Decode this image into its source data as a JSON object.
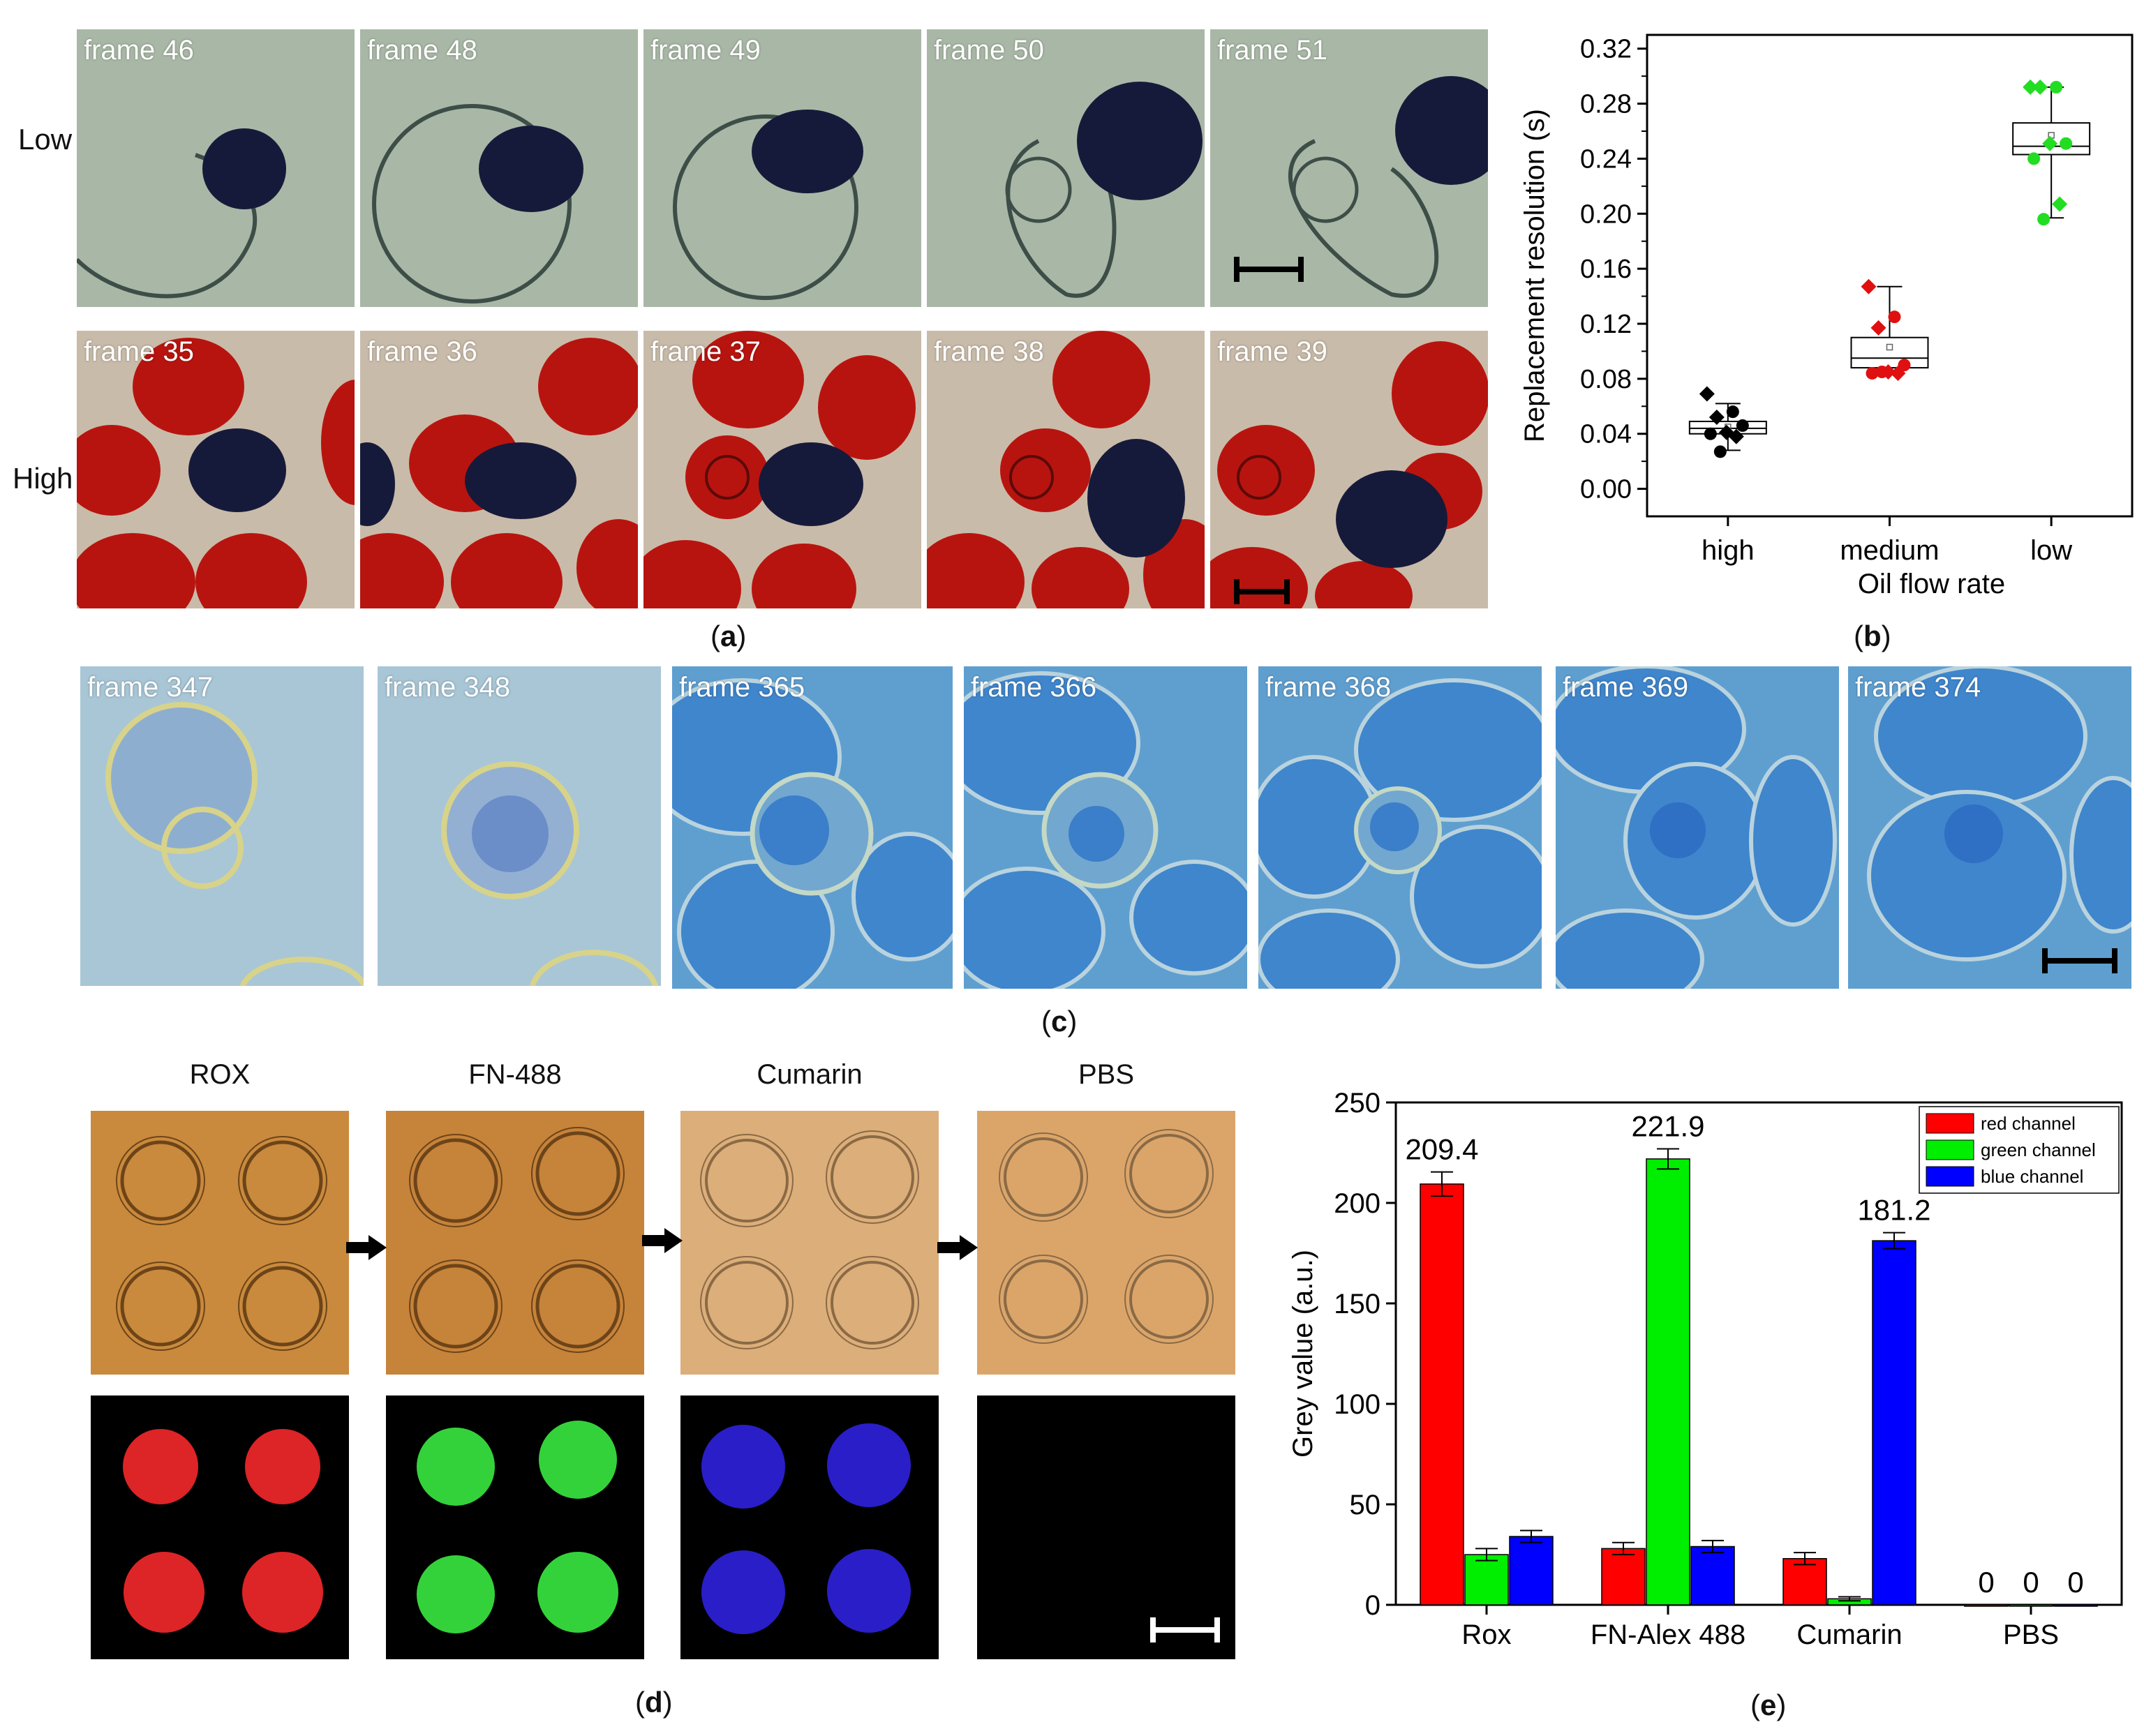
{
  "panel_a": {
    "row_labels": [
      "Low",
      "High"
    ],
    "low_frames": [
      "frame 46",
      "frame 48",
      "frame 49",
      "frame 50",
      "frame 51"
    ],
    "high_frames": [
      "frame 35",
      "frame 36",
      "frame 37",
      "frame 38",
      "frame 39"
    ],
    "caption": "a"
  },
  "panel_c": {
    "frames": [
      "frame 347",
      "frame 348",
      "frame 365",
      "frame 366",
      "frame 368",
      "frame 369",
      "frame 374"
    ],
    "caption": "c"
  },
  "panel_d": {
    "headers": [
      "ROX",
      "FN-488",
      "Cumarin",
      "PBS"
    ],
    "caption": "d",
    "fluor_colors": [
      "#dd2426",
      "#34d23a",
      "#2a1ec8",
      "#000000"
    ]
  },
  "colors": {
    "low_bg": "#a9b8a6",
    "high_bg": "#c9bba9",
    "blue_bg": "#5f9fd0",
    "droplet_dark": "#161a3a",
    "droplet_red": "#b8140f",
    "bright_bg": "#c98a3d"
  },
  "chart_data": [
    {
      "type": "scatter",
      "panel": "b",
      "caption": "b",
      "xlabel": "Oil flow rate",
      "ylabel": "Replacement resolution (s)",
      "categories": [
        "high",
        "medium",
        "low"
      ],
      "ylim": [
        -0.02,
        0.33
      ],
      "yticks": [
        "0.00",
        "0.04",
        "0.08",
        "0.12",
        "0.16",
        "0.20",
        "0.24",
        "0.28",
        "0.32"
      ],
      "series": [
        {
          "category": "high",
          "color": "#000000",
          "q1": 0.04,
          "median": 0.044,
          "q3": 0.049,
          "min": 0.028,
          "max": 0.062,
          "mean": 0.045,
          "points": [
            0.069,
            0.056,
            0.052,
            0.046,
            0.041,
            0.04,
            0.038,
            0.027
          ]
        },
        {
          "category": "medium",
          "color": "#e01010",
          "q1": 0.088,
          "median": 0.095,
          "q3": 0.11,
          "min": 0.085,
          "max": 0.147,
          "mean": 0.103,
          "points": [
            0.147,
            0.125,
            0.117,
            0.09,
            0.085,
            0.084,
            0.084,
            0.085
          ]
        },
        {
          "category": "low",
          "color": "#22dd22",
          "q1": 0.243,
          "median": 0.249,
          "q3": 0.266,
          "min": 0.197,
          "max": 0.292,
          "mean": 0.257,
          "points": [
            0.292,
            0.292,
            0.292,
            0.251,
            0.251,
            0.24,
            0.207,
            0.196
          ]
        }
      ]
    },
    {
      "type": "bar",
      "panel": "e",
      "caption": "e",
      "xlabel": "",
      "ylabel": "Grey value (a.u.)",
      "categories": [
        "Rox",
        "FN-Alex 488",
        "Cumarin",
        "PBS"
      ],
      "ylim": [
        0,
        250
      ],
      "yticks": [
        "0",
        "50",
        "100",
        "150",
        "200",
        "250"
      ],
      "legend_position": "top-right",
      "series": [
        {
          "name": "red channel",
          "color": "#ff0000",
          "values": [
            209.4,
            28,
            23,
            0
          ],
          "errors": [
            6,
            3,
            3,
            0
          ]
        },
        {
          "name": "green channel",
          "color": "#00ee00",
          "values": [
            25,
            221.9,
            3,
            0
          ],
          "errors": [
            3,
            5,
            1,
            0
          ]
        },
        {
          "name": "blue channel",
          "color": "#0000ff",
          "values": [
            34,
            29,
            181.2,
            0
          ],
          "errors": [
            3,
            3,
            4,
            0
          ]
        }
      ],
      "data_labels": [
        {
          "category": "Rox",
          "series": "red channel",
          "text": "209.4"
        },
        {
          "category": "FN-Alex 488",
          "series": "green channel",
          "text": "221.9"
        },
        {
          "category": "Cumarin",
          "series": "blue channel",
          "text": "181.2"
        },
        {
          "category": "PBS",
          "series": "red channel",
          "text": "0"
        },
        {
          "category": "PBS",
          "series": "green channel",
          "text": "0"
        },
        {
          "category": "PBS",
          "series": "blue channel",
          "text": "0"
        }
      ]
    }
  ]
}
